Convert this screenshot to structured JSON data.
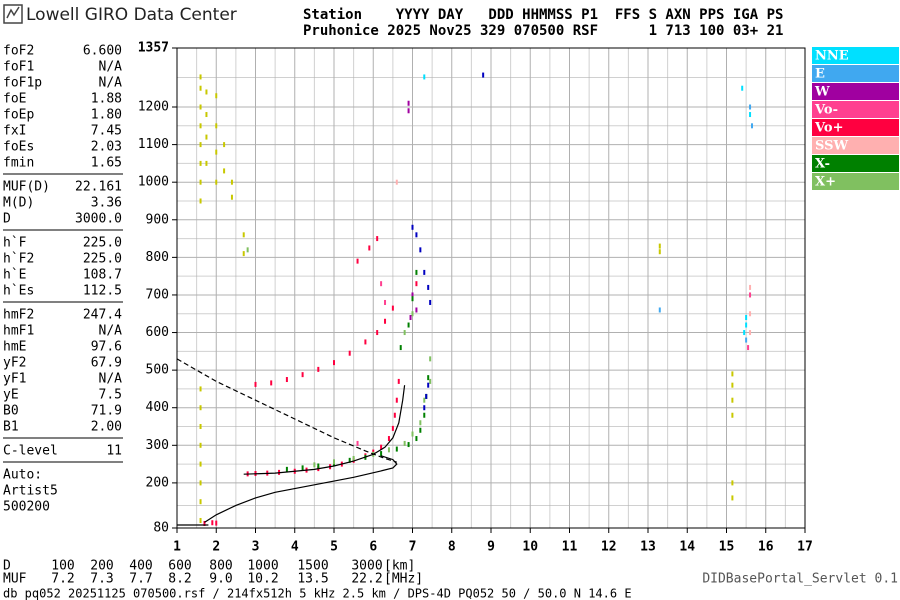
{
  "header": {
    "logo": "Lowell GIRO Data Center",
    "line1": "Station    YYYY DAY   DDD HHMMSS P1  FFS S AXN PPS IGA PS",
    "line2": "Pruhonice 2025 Nov25 329 070500 RSF      1 713 100 03+ 21"
  },
  "parameters": [
    [
      [
        "foF2",
        "6.600"
      ],
      [
        "foF1",
        "N/A"
      ],
      [
        "foF1p",
        "N/A"
      ],
      [
        "foE",
        "1.88"
      ],
      [
        "foEp",
        "1.80"
      ],
      [
        "fxI",
        "7.45"
      ],
      [
        "foEs",
        "2.03"
      ],
      [
        "fmin",
        "1.65"
      ]
    ],
    [
      [
        "MUF(D)",
        "22.161"
      ],
      [
        "M(D)",
        "3.36"
      ],
      [
        "D",
        "3000.0"
      ]
    ],
    [
      [
        "h`F",
        "225.0"
      ],
      [
        "h`F2",
        "225.0"
      ],
      [
        "h`E",
        "108.7"
      ],
      [
        "h`Es",
        "112.5"
      ]
    ],
    [
      [
        "hmF2",
        "247.4"
      ],
      [
        "hmF1",
        "N/A"
      ],
      [
        "hmE",
        "97.6"
      ],
      [
        "yF2",
        "67.9"
      ],
      [
        "yF1",
        "N/A"
      ],
      [
        "yE",
        "7.5"
      ],
      [
        "B0",
        "71.9"
      ],
      [
        "B1",
        "2.00"
      ]
    ],
    [
      [
        "C-level",
        "11"
      ]
    ]
  ],
  "auto": [
    "Auto:",
    "Artist5",
    "500200"
  ],
  "chart_data": {
    "type": "scatter",
    "xlim": [
      1,
      17
    ],
    "ylim": [
      80,
      1357
    ],
    "xticks": [
      1,
      2,
      3,
      4,
      5,
      6,
      7,
      8,
      9,
      10,
      11,
      12,
      13,
      14,
      15,
      16,
      17
    ],
    "yticks": [
      80,
      200,
      300,
      400,
      500,
      600,
      700,
      800,
      900,
      1000,
      1100,
      1200,
      1357
    ],
    "grid": true,
    "series": [
      {
        "color": "#c8c800",
        "x": [
          1.6,
          1.6,
          1.6,
          1.6,
          1.6,
          1.6,
          1.6,
          1.6,
          1.6,
          1.6,
          1.6,
          1.6,
          1.6,
          1.6,
          1.6,
          1.6,
          1.75,
          1.75,
          1.75,
          1.75,
          2.0,
          2.0,
          2.0,
          2.0,
          2.2,
          2.2,
          2.4,
          2.4,
          2.7,
          2.7,
          13.3,
          13.3,
          15.15,
          15.15,
          15.15,
          15.15,
          15.15,
          15.15
        ],
        "values": [
          100,
          150,
          200,
          250,
          300,
          350,
          400,
          450,
          950,
          1000,
          1050,
          1100,
          1150,
          1200,
          1250,
          1280,
          1050,
          1120,
          1180,
          1240,
          1000,
          1080,
          1150,
          1230,
          1100,
          1030,
          960,
          1000,
          860,
          810,
          830,
          815,
          380,
          420,
          460,
          490,
          160,
          200
        ]
      },
      {
        "name": "NNE",
        "color": "#00e0ff",
        "x": [
          15.5,
          15.5,
          15.45,
          15.4,
          15.6,
          7.3
        ],
        "values": [
          620,
          640,
          600,
          1250,
          1180,
          1280
        ]
      },
      {
        "name": "E",
        "color": "#40a8f0",
        "x": [
          15.6,
          15.65,
          15.5,
          13.3
        ],
        "values": [
          1200,
          1150,
          580,
          660
        ]
      },
      {
        "name": "W",
        "color": "#a000a0",
        "x": [
          6.9,
          6.9,
          7.0,
          7.1,
          6.95
        ],
        "values": [
          1190,
          1210,
          700,
          660,
          640
        ]
      },
      {
        "name": "Vo-",
        "color": "#ff4090",
        "x": [
          5.6,
          6.3,
          6.2,
          15.6,
          15.55
        ],
        "values": [
          305,
          680,
          730,
          700,
          560
        ]
      },
      {
        "name": "Vo+",
        "color": "#ff0040",
        "x": [
          1.7,
          1.9,
          2.0,
          2.8,
          3.0,
          3.3,
          3.6,
          4.0,
          4.3,
          4.6,
          4.9,
          5.2,
          5.5,
          5.8,
          6.0,
          6.2,
          6.4,
          6.5,
          6.55,
          6.6,
          6.65,
          3.0,
          3.4,
          3.8,
          4.2,
          4.6,
          5.0,
          5.4,
          5.8,
          6.1,
          6.3,
          6.5,
          5.6,
          5.9,
          6.1,
          7.1
        ],
        "values": [
          92,
          94,
          93,
          224,
          225,
          226,
          228,
          231,
          234,
          238,
          243,
          250,
          260,
          272,
          282,
          295,
          318,
          345,
          380,
          420,
          470,
          462,
          466,
          475,
          488,
          502,
          520,
          545,
          575,
          600,
          630,
          665,
          790,
          825,
          850,
          730
        ]
      },
      {
        "name": "SSW",
        "color": "#ffb0b0",
        "x": [
          15.6,
          15.6,
          15.6,
          6.6
        ],
        "values": [
          650,
          720,
          600,
          1000
        ]
      },
      {
        "name": "X-",
        "color": "#008000",
        "x": [
          3.8,
          4.2,
          4.6,
          5.0,
          5.4,
          5.8,
          6.2,
          6.6,
          6.9,
          7.1,
          7.2,
          7.3,
          7.35,
          7.4,
          6.7,
          6.9,
          7.0,
          7.1
        ],
        "values": [
          236,
          240,
          245,
          252,
          260,
          268,
          278,
          290,
          302,
          318,
          340,
          380,
          430,
          480,
          560,
          620,
          690,
          760
        ]
      },
      {
        "name": "X+",
        "color": "#80c060",
        "x": [
          4.5,
          5.0,
          5.5,
          6.0,
          6.4,
          6.8,
          7.0,
          7.2,
          7.3,
          7.45,
          7.45,
          6.8,
          7.0,
          2.8
        ],
        "values": [
          248,
          256,
          265,
          276,
          288,
          305,
          330,
          360,
          420,
          470,
          530,
          600,
          650,
          820
        ]
      },
      {
        "color": "#0000c0",
        "x": [
          7.3,
          7.35,
          7.4,
          7.3,
          7.2,
          7.1,
          7.0,
          8.8,
          7.4,
          7.45
        ],
        "values": [
          400,
          430,
          460,
          760,
          820,
          860,
          880,
          1285,
          720,
          680
        ]
      }
    ],
    "lines": [
      {
        "color": "#000000",
        "x": [
          1.0,
          1.8
        ],
        "values": [
          88,
          88
        ]
      },
      {
        "color": "#000000",
        "x": [
          1.7,
          2.0,
          2.5,
          3.0,
          3.5,
          4.5,
          5.5,
          6.2,
          6.5,
          6.6,
          6.5,
          6.2
        ],
        "values": [
          95,
          115,
          140,
          160,
          175,
          195,
          215,
          232,
          240,
          250,
          262,
          272
        ]
      },
      {
        "color": "#000000",
        "dash": true,
        "x": [
          1.0,
          2.0,
          3.0,
          4.0,
          5.0,
          5.8,
          6.3,
          6.6
        ],
        "values": [
          530,
          470,
          420,
          370,
          320,
          285,
          265,
          255
        ]
      },
      {
        "color": "#000000",
        "x": [
          2.7,
          3.5,
          4.5,
          5.0,
          5.5,
          6.0,
          6.3,
          6.5,
          6.65,
          6.75,
          6.8
        ],
        "values": [
          223,
          226,
          236,
          245,
          258,
          276,
          295,
          320,
          360,
          420,
          460
        ]
      }
    ]
  },
  "distance_table": {
    "d_label": "D",
    "d": [
      "100",
      "200",
      "400",
      "600",
      "800",
      "1000",
      "1500",
      "3000"
    ],
    "d_unit": "[km]",
    "muf_label": "MUF",
    "muf": [
      "7.2",
      "7.3",
      "7.7",
      "8.2",
      "9.0",
      "10.2",
      "13.5",
      "22.2"
    ],
    "muf_unit": "[MHz]"
  },
  "footer": "db pq052 20251125 070500.rsf / 214fx512h 5 kHz 2.5 km / DPS-4D PQ052 50 / 50.0 N 14.6 E",
  "servlet": "DIDBasePortal_Servlet 0.1"
}
